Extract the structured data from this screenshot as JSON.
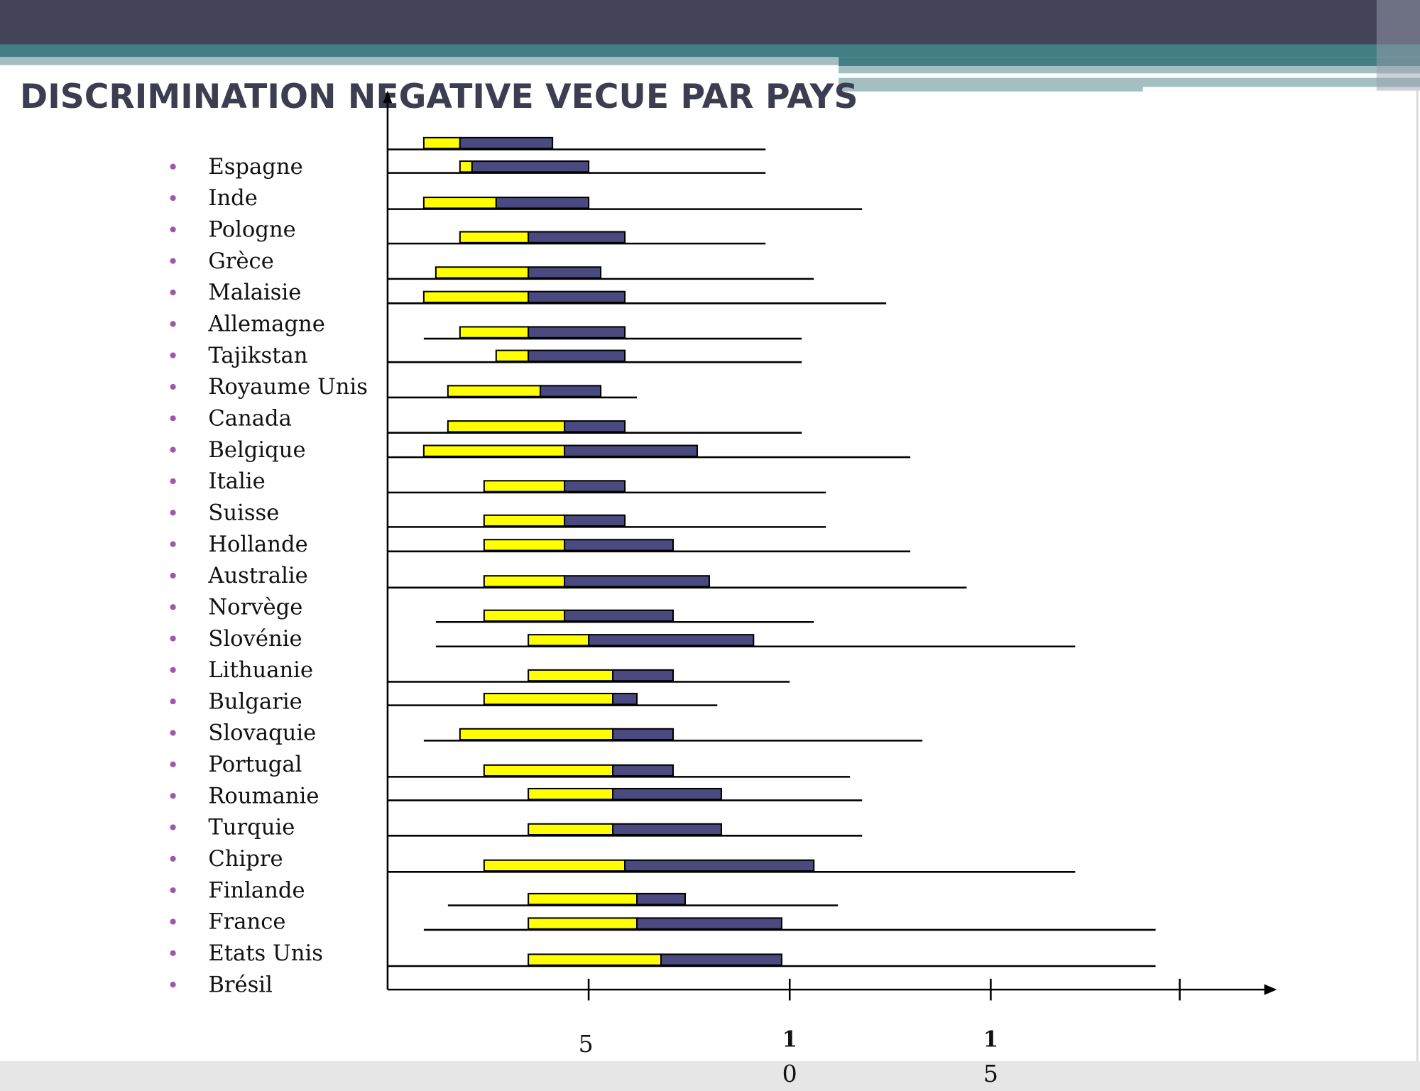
{
  "slide": {
    "title": "DISCRIMINATION NEGATIVE VECUE PAR PAYS",
    "colors": {
      "header_dark": "#43435a",
      "header_teal": "#447e85",
      "header_light": "#a3bfc2",
      "bullet": "#9b59a8",
      "bar_low": "#ffff00",
      "bar_high": "#4a4a80",
      "footer": "#e6e6e6"
    }
  },
  "chart_data": {
    "type": "bar",
    "title": "DISCRIMINATION NEGATIVE VECUE PAR PAYS",
    "xlabel": "",
    "ylabel": "",
    "xlim": [
      0,
      20.5
    ],
    "grid": false,
    "legend": "none",
    "x_ticks": [
      {
        "value": 5,
        "label_lines": [
          "5"
        ]
      },
      {
        "value": 10,
        "label_lines": [
          "1",
          "0"
        ]
      },
      {
        "value": 15,
        "label_lines": [
          "1",
          "5"
        ]
      },
      {
        "value": 19.7,
        "label_lines": []
      }
    ],
    "categories": [
      "Espagne",
      "Inde",
      "Pologne",
      "Grèce",
      "Malaisie",
      "Allemagne",
      "Tajikstan",
      "Royaume Unis",
      "Canada",
      "Belgique",
      "Italie",
      "Suisse",
      "Hollande",
      "Australie",
      "Norvège",
      "Slovénie",
      "Lithuanie",
      "Bulgarie",
      "Slovaquie",
      "Portugal",
      "Roumanie",
      "Turquie",
      "Chipre",
      "Finlande",
      "France",
      "Etats Unis",
      "Brésil"
    ],
    "series_description": "Per row: yellow segment [low, mid], blue segment [mid, high], thin range line [line_start, line_end]",
    "rows": [
      {
        "low": 0.9,
        "mid": 1.8,
        "high": 4.1,
        "line_start": 0,
        "line_end": 9.4
      },
      {
        "low": 1.8,
        "mid": 2.1,
        "high": 5.0,
        "line_start": 0,
        "line_end": 9.4
      },
      {
        "low": 0.9,
        "mid": 2.7,
        "high": 5.0,
        "line_start": 0,
        "line_end": 11.8
      },
      {
        "low": 1.8,
        "mid": 3.5,
        "high": 5.9,
        "line_start": 0,
        "line_end": 9.4
      },
      {
        "low": 1.2,
        "mid": 3.5,
        "high": 5.3,
        "line_start": 0,
        "line_end": 10.6
      },
      {
        "low": 0.9,
        "mid": 3.5,
        "high": 5.9,
        "line_start": 0,
        "line_end": 12.4
      },
      {
        "low": 1.8,
        "mid": 3.5,
        "high": 5.9,
        "line_start": 0.9,
        "line_end": 10.3
      },
      {
        "low": 2.7,
        "mid": 3.5,
        "high": 5.9,
        "line_start": 0,
        "line_end": 10.3
      },
      {
        "low": 1.5,
        "mid": 3.8,
        "high": 5.3,
        "line_start": 0,
        "line_end": 6.2
      },
      {
        "low": 1.5,
        "mid": 4.4,
        "high": 5.9,
        "line_start": 0,
        "line_end": 10.3
      },
      {
        "low": 0.9,
        "mid": 4.4,
        "high": 7.7,
        "line_start": 0,
        "line_end": 13.0
      },
      {
        "low": 2.4,
        "mid": 4.4,
        "high": 5.9,
        "line_start": 0,
        "line_end": 10.9
      },
      {
        "low": 2.4,
        "mid": 4.4,
        "high": 5.9,
        "line_start": 0,
        "line_end": 10.9
      },
      {
        "low": 2.4,
        "mid": 4.4,
        "high": 7.1,
        "line_start": 0,
        "line_end": 13.0
      },
      {
        "low": 2.4,
        "mid": 4.4,
        "high": 8.0,
        "line_start": 0,
        "line_end": 14.4
      },
      {
        "low": 2.4,
        "mid": 4.4,
        "high": 7.1,
        "line_start": 1.2,
        "line_end": 10.6
      },
      {
        "low": 3.5,
        "mid": 5.0,
        "high": 9.1,
        "line_start": 1.2,
        "line_end": 17.1
      },
      {
        "low": 3.5,
        "mid": 5.6,
        "high": 7.1,
        "line_start": 0,
        "line_end": 10.0
      },
      {
        "low": 2.4,
        "mid": 5.6,
        "high": 6.2,
        "line_start": 0,
        "line_end": 8.2
      },
      {
        "low": 1.8,
        "mid": 5.6,
        "high": 7.1,
        "line_start": 0.9,
        "line_end": 13.3
      },
      {
        "low": 2.4,
        "mid": 5.6,
        "high": 7.1,
        "line_start": 0,
        "line_end": 11.5
      },
      {
        "low": 3.5,
        "mid": 5.6,
        "high": 8.3,
        "line_start": 0,
        "line_end": 11.8
      },
      {
        "low": 3.5,
        "mid": 5.6,
        "high": 8.3,
        "line_start": 0,
        "line_end": 11.8
      },
      {
        "low": 2.4,
        "mid": 5.9,
        "high": 10.6,
        "line_start": 0,
        "line_end": 17.1
      },
      {
        "low": 3.5,
        "mid": 6.2,
        "high": 7.4,
        "line_start": 1.5,
        "line_end": 11.2
      },
      {
        "low": 3.5,
        "mid": 6.2,
        "high": 9.8,
        "line_start": 0.9,
        "line_end": 19.1
      },
      {
        "low": 3.5,
        "mid": 6.8,
        "high": 9.8,
        "line_start": 0,
        "line_end": 19.1
      }
    ]
  }
}
